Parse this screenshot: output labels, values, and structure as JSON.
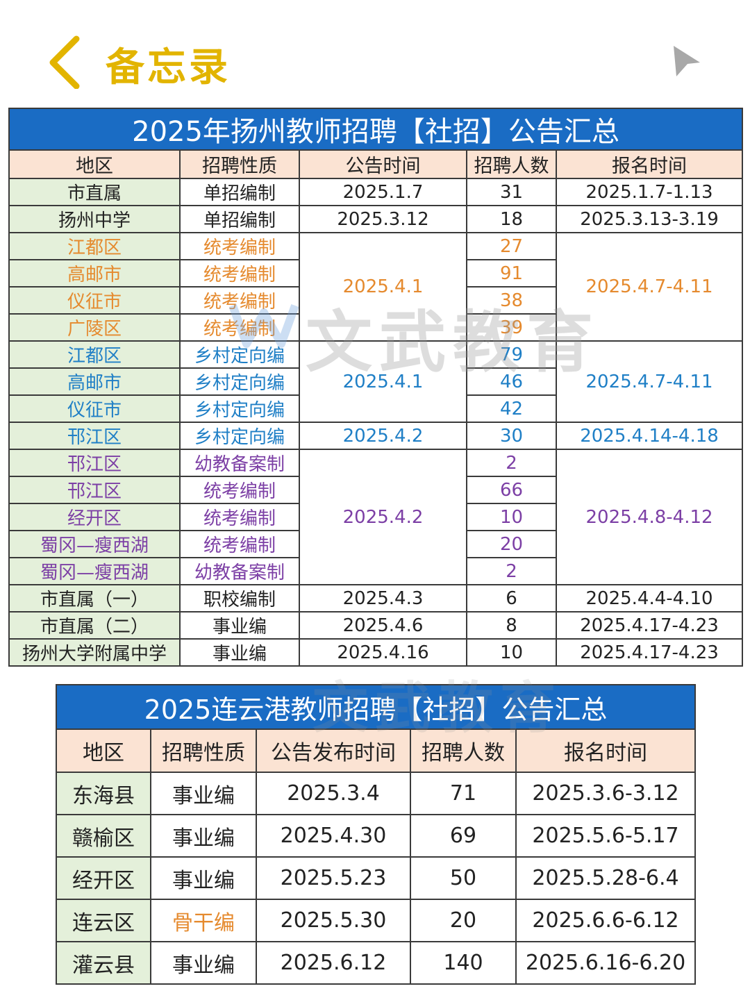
{
  "header": {
    "back_icon": "chevron-left-icon",
    "title": "备忘录",
    "share_icon": "share-arrow-icon",
    "accent_color": "#e2b400"
  },
  "watermark": {
    "text": "文武教育"
  },
  "colors": {
    "title_bar": "#1a6cc4",
    "header_bg": "#fbe3d3",
    "region_bg": "#e4f0da",
    "orange": "#e58a2e",
    "blue": "#1f7fc6",
    "purple": "#7c3fa5"
  },
  "yangzhou": {
    "title": "2025年扬州教师招聘【社招】公告汇总",
    "headers": [
      "地区",
      "招聘性质",
      "公告时间",
      "招聘人数",
      "报名时间"
    ],
    "rows": [
      {
        "region": "市直属",
        "type": "单招编制",
        "announce": "2025.1.7",
        "count": "31",
        "signup": "2025.1.7-1.13"
      },
      {
        "region": "扬州中学",
        "type": "单招编制",
        "announce": "2025.3.12",
        "count": "18",
        "signup": "2025.3.13-3.19"
      },
      {
        "region": "江都区",
        "type": "统考编制",
        "announce": "2025.4.1",
        "count": "27",
        "signup": "2025.4.7-4.11"
      },
      {
        "region": "高邮市",
        "type": "统考编制",
        "count": "91"
      },
      {
        "region": "仪征市",
        "type": "统考编制",
        "count": "38"
      },
      {
        "region": "广陵区",
        "type": "统考编制",
        "count": "39"
      },
      {
        "region": "江都区",
        "type": "乡村定向编",
        "announce": "2025.4.1",
        "count": "79",
        "signup": "2025.4.7-4.11"
      },
      {
        "region": "高邮市",
        "type": "乡村定向编",
        "count": "46"
      },
      {
        "region": "仪征市",
        "type": "乡村定向编",
        "count": "42"
      },
      {
        "region": "邗江区",
        "type": "乡村定向编",
        "announce": "2025.4.2",
        "count": "30",
        "signup": "2025.4.14-4.18"
      },
      {
        "region": "邗江区",
        "type": "幼教备案制",
        "announce": "2025.4.2",
        "count": "2",
        "signup": "2025.4.8-4.12"
      },
      {
        "region": "邗江区",
        "type": "统考编制",
        "count": "66"
      },
      {
        "region": "经开区",
        "type": "统考编制",
        "count": "10"
      },
      {
        "region": "蜀冈—瘦西湖",
        "type": "统考编制",
        "count": "20"
      },
      {
        "region": "蜀冈—瘦西湖",
        "type": "幼教备案制",
        "count": "2"
      },
      {
        "region": "市直属（一）",
        "type": "职校编制",
        "announce": "2025.4.3",
        "count": "6",
        "signup": "2025.4.4-4.10"
      },
      {
        "region": "市直属（二）",
        "type": "事业编",
        "announce": "2025.4.6",
        "count": "8",
        "signup": "2025.4.17-4.23"
      },
      {
        "region": "扬州大学附属中学",
        "type": "事业编",
        "announce": "2025.4.16",
        "count": "10",
        "signup": "2025.4.17-4.23"
      }
    ]
  },
  "lianyungang": {
    "title": "2025连云港教师招聘【社招】公告汇总",
    "headers": [
      "地区",
      "招聘性质",
      "公告发布时间",
      "招聘人数",
      "报名时间"
    ],
    "rows": [
      {
        "region": "东海县",
        "type": "事业编",
        "announce": "2025.3.4",
        "count": "71",
        "signup": "2025.3.6-3.12"
      },
      {
        "region": "赣榆区",
        "type": "事业编",
        "announce": "2025.4.30",
        "count": "69",
        "signup": "2025.5.6-5.17"
      },
      {
        "region": "经开区",
        "type": "事业编",
        "announce": "2025.5.23",
        "count": "50",
        "signup": "2025.5.28-6.4"
      },
      {
        "region": "连云区",
        "type": "骨干编",
        "announce": "2025.5.30",
        "count": "20",
        "signup": "2025.6.6-6.12"
      },
      {
        "region": "灌云县",
        "type": "事业编",
        "announce": "2025.6.12",
        "count": "140",
        "signup": "2025.6.16-6.20"
      }
    ]
  }
}
